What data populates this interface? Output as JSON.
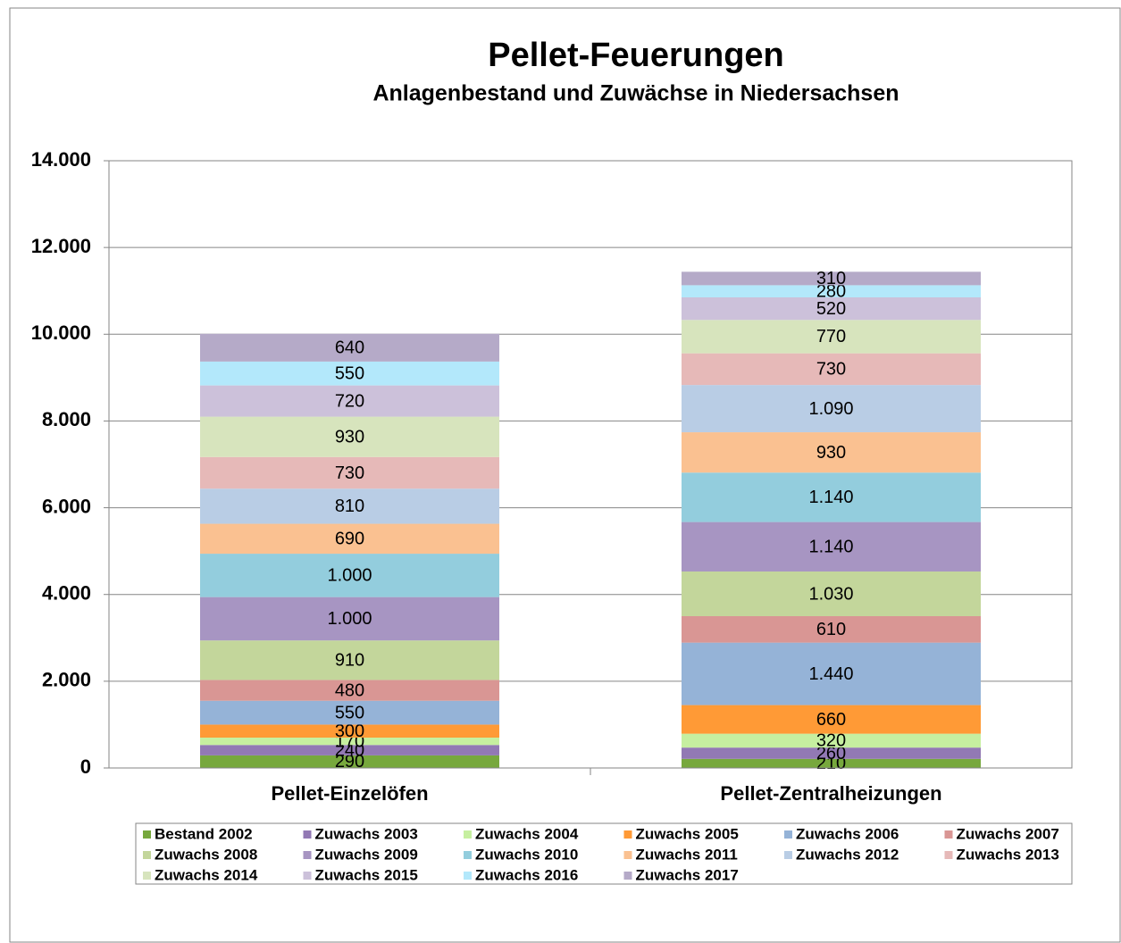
{
  "chart_data": {
    "type": "stacked-bar",
    "title": "Pellet-Feuerungen",
    "subtitle": "Anlagenbestand und Zuwächse in Niedersachsen",
    "categories": [
      "Pellet-Einzelöfen",
      "Pellet-Zentralheizungen"
    ],
    "ylim": [
      0,
      14000
    ],
    "yticks": [
      0,
      {
        "value": 2000,
        "label": "2.000"
      },
      {
        "value": 4000,
        "label": "4.000"
      },
      {
        "value": 6000,
        "label": "6.000"
      },
      {
        "value": 8000,
        "label": "8.000"
      },
      {
        "value": 10000,
        "label": "10.000"
      },
      {
        "value": 12000,
        "label": "12.000"
      },
      {
        "value": 14000,
        "label": "14.000"
      }
    ],
    "grid": true,
    "legend": "bottom",
    "series": [
      {
        "name": "Bestand 2002",
        "color": "#77a83d",
        "values": [
          290,
          210
        ],
        "value_labels": [
          "290",
          "210"
        ]
      },
      {
        "name": "Zuwachs 2003",
        "color": "#9279b4",
        "values": [
          240,
          260
        ],
        "value_labels": [
          "240",
          "260"
        ]
      },
      {
        "name": "Zuwachs 2004",
        "color": "#c6efa0",
        "values": [
          170,
          320
        ],
        "value_labels": [
          "170",
          "320"
        ]
      },
      {
        "name": "Zuwachs 2005",
        "color": "#ff9a36",
        "values": [
          300,
          660
        ],
        "value_labels": [
          "300",
          "660"
        ]
      },
      {
        "name": "Zuwachs 2006",
        "color": "#95b3d7",
        "values": [
          550,
          1440
        ],
        "value_labels": [
          "550",
          "1.440"
        ]
      },
      {
        "name": "Zuwachs 2007",
        "color": "#d99694",
        "values": [
          480,
          610
        ],
        "value_labels": [
          "480",
          "610"
        ]
      },
      {
        "name": "Zuwachs 2008",
        "color": "#c3d69b",
        "values": [
          910,
          1030
        ],
        "value_labels": [
          "910",
          "1.030"
        ]
      },
      {
        "name": "Zuwachs 2009",
        "color": "#a795c2",
        "values": [
          1000,
          1140
        ],
        "value_labels": [
          "1.000",
          "1.140"
        ]
      },
      {
        "name": "Zuwachs 2010",
        "color": "#93cddd",
        "values": [
          1000,
          1140
        ],
        "value_labels": [
          "1.000",
          "1.140"
        ]
      },
      {
        "name": "Zuwachs 2011",
        "color": "#fac191",
        "values": [
          690,
          930
        ],
        "value_labels": [
          "690",
          "930"
        ]
      },
      {
        "name": "Zuwachs 2012",
        "color": "#b9cde5",
        "values": [
          810,
          1090
        ],
        "value_labels": [
          "810",
          "1.090"
        ]
      },
      {
        "name": "Zuwachs 2013",
        "color": "#e6b9b8",
        "values": [
          730,
          730
        ],
        "value_labels": [
          "730",
          "730"
        ]
      },
      {
        "name": "Zuwachs 2014",
        "color": "#d7e4bd",
        "values": [
          930,
          770
        ],
        "value_labels": [
          "930",
          "770"
        ]
      },
      {
        "name": "Zuwachs 2015",
        "color": "#ccc1da",
        "values": [
          720,
          520
        ],
        "value_labels": [
          "720",
          "520"
        ]
      },
      {
        "name": "Zuwachs 2016",
        "color": "#b3e8fb",
        "values": [
          550,
          280
        ],
        "value_labels": [
          "550",
          "280"
        ]
      },
      {
        "name": "Zuwachs 2017",
        "color": "#b5aac8",
        "values": [
          640,
          310
        ],
        "value_labels": [
          "640",
          "310"
        ]
      }
    ]
  }
}
